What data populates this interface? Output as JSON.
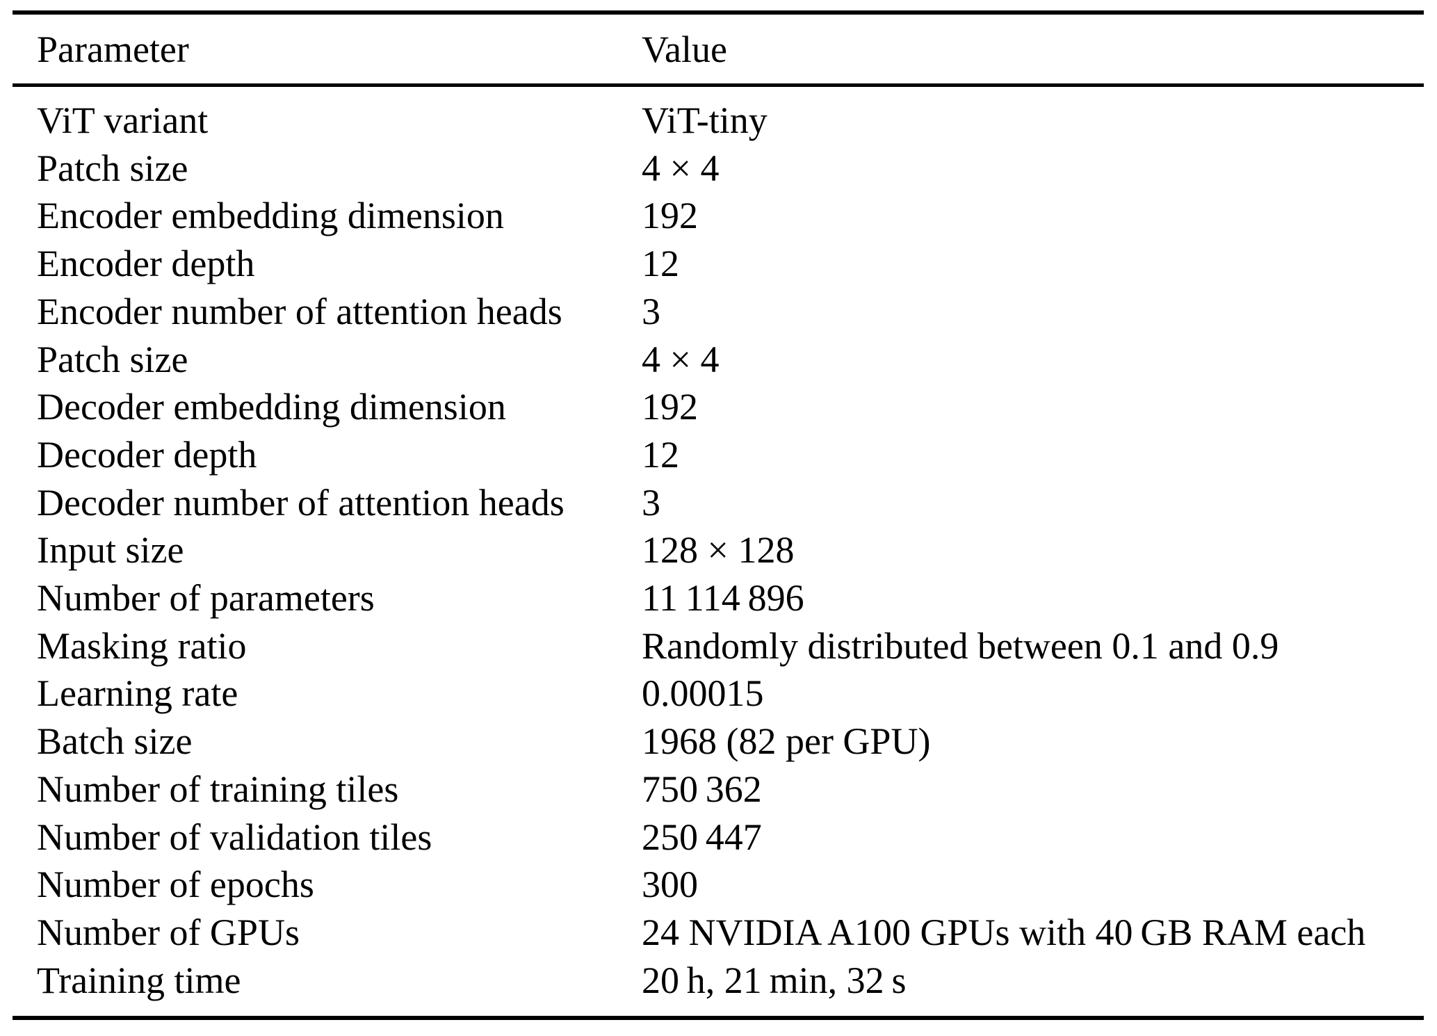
{
  "colors": {
    "text": "#000000",
    "background": "#ffffff",
    "rule": "#000000"
  },
  "table": {
    "columns": {
      "parameter": "Parameter",
      "value": "Value"
    },
    "rows": [
      {
        "parameter": "ViT variant",
        "value": "ViT-tiny"
      },
      {
        "parameter": "Patch size",
        "value": "4 × 4"
      },
      {
        "parameter": "Encoder embedding dimension",
        "value": "192"
      },
      {
        "parameter": "Encoder depth",
        "value": "12"
      },
      {
        "parameter": "Encoder number of attention heads",
        "value": "3"
      },
      {
        "parameter": "Patch size",
        "value": "4 × 4"
      },
      {
        "parameter": "Decoder embedding dimension",
        "value": "192"
      },
      {
        "parameter": "Decoder depth",
        "value": "12"
      },
      {
        "parameter": "Decoder number of attention heads",
        "value": "3"
      },
      {
        "parameter": "Input size",
        "value": "128 × 128"
      },
      {
        "parameter": "Number of parameters",
        "value": "11 114 896"
      },
      {
        "parameter": "Masking ratio",
        "value": "Randomly distributed between 0.1 and 0.9"
      },
      {
        "parameter": "Learning rate",
        "value": "0.00015"
      },
      {
        "parameter": "Batch size",
        "value": "1968 (82 per GPU)"
      },
      {
        "parameter": "Number of training tiles",
        "value": "750 362"
      },
      {
        "parameter": "Number of validation tiles",
        "value": "250 447"
      },
      {
        "parameter": "Number of epochs",
        "value": "300"
      },
      {
        "parameter": "Number of GPUs",
        "value": "24 NVIDIA A100 GPUs with 40 GB RAM each"
      },
      {
        "parameter": "Training time",
        "value": "20 h, 21 min, 32 s"
      }
    ]
  }
}
